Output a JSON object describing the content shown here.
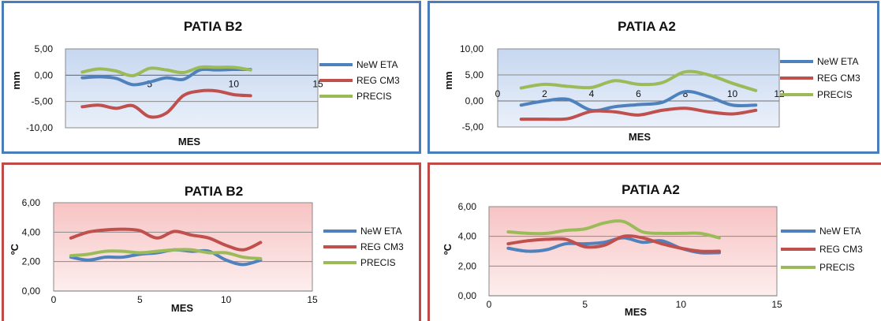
{
  "colors": {
    "NeW ETA": "#4f81bd",
    "REG CM3": "#c0504d",
    "PRECIS": "#9bbb59"
  },
  "chart_data": [
    {
      "type": "line",
      "title": "PATIA B2",
      "xlabel": "MES",
      "ylabel": "mm",
      "xlim": [
        0,
        15
      ],
      "ylim": [
        -10,
        5
      ],
      "xticks": [
        "5",
        "10",
        "15"
      ],
      "yticks": [
        "5,00",
        "0,00",
        "-5,00",
        "-10,00"
      ],
      "legend": "right",
      "x": [
        1,
        2,
        3,
        4,
        5,
        6,
        7,
        8,
        9,
        10,
        11
      ],
      "series": [
        {
          "name": "NeW ETA",
          "values": [
            -0.5,
            -0.3,
            -0.6,
            -1.8,
            -1.3,
            -0.5,
            -0.8,
            1.0,
            1.0,
            1.1,
            1.1
          ]
        },
        {
          "name": "REG CM3",
          "values": [
            -6.0,
            -5.7,
            -6.3,
            -5.8,
            -7.9,
            -7.2,
            -3.9,
            -3.0,
            -3.0,
            -3.7,
            -3.9
          ]
        },
        {
          "name": "PRECIS",
          "values": [
            0.6,
            1.2,
            0.8,
            -0.1,
            1.3,
            1.0,
            0.5,
            1.5,
            1.5,
            1.5,
            1.0
          ]
        }
      ]
    },
    {
      "type": "line",
      "title": "PATIA A2",
      "xlabel": "MES",
      "ylabel": "mm",
      "xlim": [
        0,
        12
      ],
      "ylim": [
        -5,
        10
      ],
      "xticks": [
        "0",
        "2",
        "4",
        "6",
        "8",
        "10",
        "12"
      ],
      "yticks": [
        "10,00",
        "5,00",
        "0,00",
        "-5,00"
      ],
      "legend": "right",
      "x": [
        1,
        2,
        3,
        4,
        5,
        6,
        7,
        8,
        9,
        10,
        11
      ],
      "series": [
        {
          "name": "NeW ETA",
          "values": [
            -0.8,
            0.0,
            0.3,
            -1.8,
            -1.1,
            -0.7,
            -0.3,
            1.8,
            0.8,
            -0.8,
            -0.8
          ]
        },
        {
          "name": "REG CM3",
          "values": [
            -3.5,
            -3.5,
            -3.4,
            -2.0,
            -2.1,
            -2.7,
            -1.8,
            -1.4,
            -2.1,
            -2.5,
            -1.8
          ]
        },
        {
          "name": "PRECIS",
          "values": [
            2.5,
            3.2,
            2.8,
            2.6,
            3.9,
            3.2,
            3.5,
            5.6,
            5.0,
            3.4,
            2.0
          ]
        }
      ]
    },
    {
      "type": "line",
      "title": "PATIA B2",
      "xlabel": "MES",
      "ylabel": "ºC",
      "xlim": [
        0,
        15
      ],
      "ylim": [
        0,
        6
      ],
      "xticks": [
        "0",
        "5",
        "10",
        "15"
      ],
      "yticks": [
        "6,00",
        "4,00",
        "2,00",
        "0,00"
      ],
      "legend": "right",
      "x": [
        1,
        2,
        3,
        4,
        5,
        6,
        7,
        8,
        9,
        10,
        11,
        12
      ],
      "series": [
        {
          "name": "NeW ETA",
          "values": [
            2.3,
            2.1,
            2.3,
            2.3,
            2.5,
            2.6,
            2.8,
            2.7,
            2.7,
            2.1,
            1.8,
            2.1
          ]
        },
        {
          "name": "REG CM3",
          "values": [
            3.6,
            4.0,
            4.15,
            4.2,
            4.1,
            3.6,
            4.05,
            3.8,
            3.6,
            3.1,
            2.8,
            3.3
          ]
        },
        {
          "name": "PRECIS",
          "values": [
            2.4,
            2.5,
            2.7,
            2.7,
            2.6,
            2.7,
            2.8,
            2.8,
            2.6,
            2.6,
            2.3,
            2.2
          ]
        }
      ]
    },
    {
      "type": "line",
      "title": "PATIA A2",
      "xlabel": "MES",
      "ylabel": "ºC",
      "xlim": [
        0,
        15
      ],
      "ylim": [
        0,
        6
      ],
      "xticks": [
        "0",
        "5",
        "10",
        "15"
      ],
      "yticks": [
        "6,00",
        "4,00",
        "2,00",
        "0,00"
      ],
      "legend": "right",
      "x": [
        1,
        2,
        3,
        4,
        5,
        6,
        7,
        8,
        9,
        10,
        11,
        12
      ],
      "series": [
        {
          "name": "NeW ETA",
          "values": [
            3.2,
            3.0,
            3.1,
            3.5,
            3.5,
            3.6,
            3.9,
            3.6,
            3.7,
            3.2,
            2.9,
            2.9
          ]
        },
        {
          "name": "REG CM3",
          "values": [
            3.5,
            3.7,
            3.8,
            3.8,
            3.3,
            3.4,
            4.0,
            3.9,
            3.5,
            3.2,
            3.0,
            3.0
          ]
        },
        {
          "name": "PRECIS",
          "values": [
            4.3,
            4.2,
            4.2,
            4.4,
            4.5,
            4.9,
            5.0,
            4.3,
            4.2,
            4.2,
            4.2,
            3.9
          ]
        }
      ]
    }
  ]
}
